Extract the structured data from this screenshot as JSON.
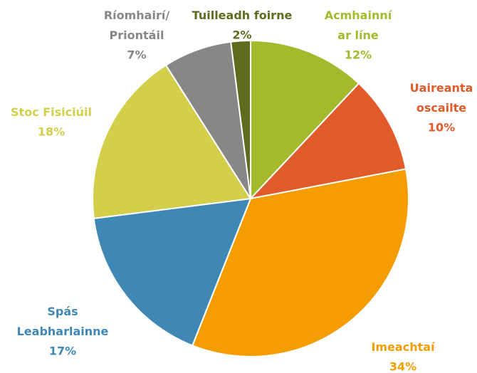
{
  "chart_data": {
    "type": "pie",
    "categories": [
      "Acmhainní\nar líne",
      "Uaireanta\noscailte",
      "Imeachtaí",
      "Spás\nLeabharlainne",
      "Stoc Fisiciúil",
      "Ríomhairí/\nPriontáil",
      "Tuilleadh foirne"
    ],
    "values": [
      12,
      10,
      34,
      17,
      18,
      7,
      2
    ],
    "value_labels": [
      "12%",
      "10%",
      "34%",
      "17%",
      "18%",
      "7%",
      "2%"
    ],
    "colors": [
      "#a5b92c",
      "#e05a2a",
      "#f59c00",
      "#3f88b5",
      "#d3cf4a",
      "#878787",
      "#5d6c1d"
    ]
  }
}
